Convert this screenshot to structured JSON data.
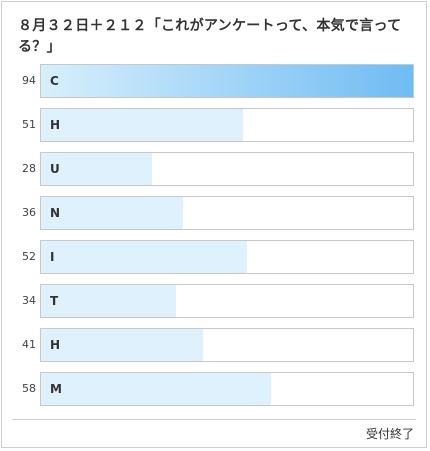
{
  "poll": {
    "title": "８月３２日＋２１２「これがアンケートって、本気で言ってる？」",
    "status": "受付終了",
    "max_votes": 94,
    "options": [
      {
        "label": "C",
        "votes": "94"
      },
      {
        "label": "H",
        "votes": "51"
      },
      {
        "label": "U",
        "votes": "28"
      },
      {
        "label": "N",
        "votes": "36"
      },
      {
        "label": "I",
        "votes": "52"
      },
      {
        "label": "T",
        "votes": "34"
      },
      {
        "label": "H",
        "votes": "41"
      },
      {
        "label": "M",
        "votes": "58"
      }
    ],
    "colors": {
      "top_fill_start": "#d8effc",
      "top_fill_end": "#6fbcf3",
      "fill": "#dff1fc",
      "border": "#c8c8c8"
    }
  }
}
